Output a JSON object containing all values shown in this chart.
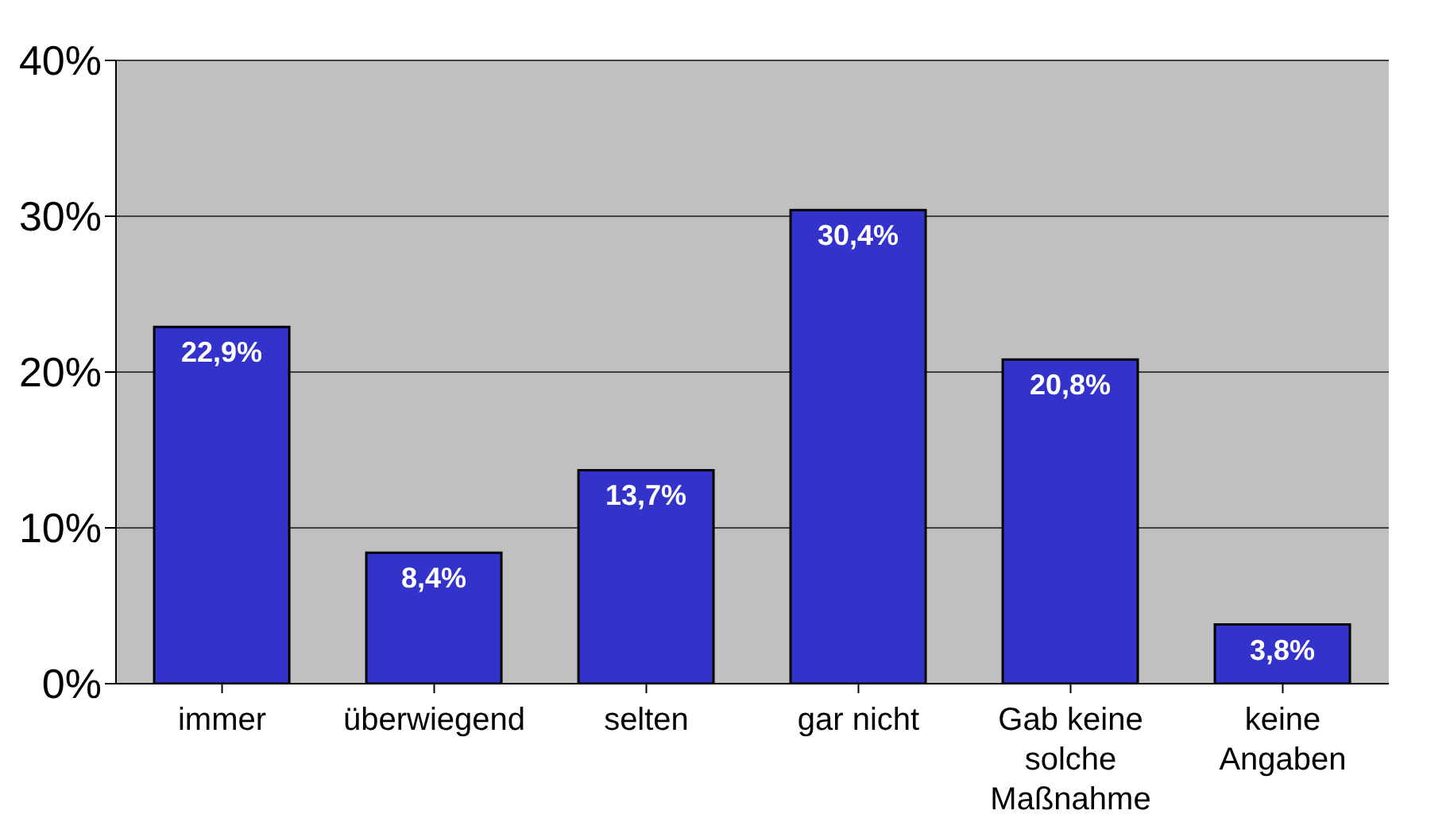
{
  "chart_data": {
    "type": "bar",
    "categories": [
      "immer",
      "überwiegend",
      "selten",
      "gar nicht",
      "Gab keine solche Maßnahme",
      "keine Angaben"
    ],
    "values": [
      22.9,
      8.4,
      13.7,
      30.4,
      20.8,
      3.8
    ],
    "color": "#3333cc",
    "value_labels": [
      "22,9%",
      "8,4%",
      "13,7%",
      "30,4%",
      "20,8%",
      "3,8%"
    ],
    "ylim": [
      0,
      40
    ],
    "yticks": [
      {
        "value": 0,
        "label": "0%"
      },
      {
        "value": 10,
        "label": "10%"
      },
      {
        "value": 20,
        "label": "20%"
      },
      {
        "value": 30,
        "label": "30%"
      },
      {
        "value": 40,
        "label": "40%"
      }
    ],
    "grid": "y"
  }
}
